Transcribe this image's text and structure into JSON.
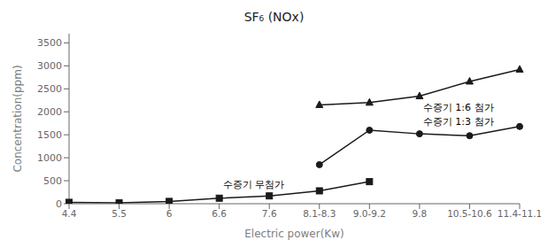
{
  "chart_data": {
    "type": "line",
    "title": "SF₆ (NOx)",
    "xlabel": "Electric power(Kw)",
    "ylabel": "Concentration(ppm)",
    "categories": [
      "4.4",
      "5.5",
      "6",
      "6.6",
      "7.6",
      "8.1-8.3",
      "9.0-9.2",
      "9.8",
      "10.5-10.6",
      "11.4-11.1"
    ],
    "series": [
      {
        "values": [
          30,
          20,
          50,
          120,
          170,
          280,
          480,
          null,
          null,
          null
        ],
        "color": "#1a1a1a",
        "marker": "square"
      },
      {
        "values": [
          null,
          null,
          null,
          null,
          null,
          850,
          1600,
          1520,
          1480,
          1680
        ],
        "color": "#1a1a1a",
        "marker": "circle"
      },
      {
        "values": [
          null,
          null,
          null,
          null,
          null,
          2150,
          2200,
          2340,
          2660,
          2920
        ],
        "color": "#1a1a1a",
        "marker": "triangle"
      }
    ],
    "annotations": [
      "수증기 무첨가",
      "수증기 1:3 첨가",
      "수증기 1:6 첨가"
    ],
    "ylim": [
      0,
      3700
    ],
    "yticks": [
      0,
      500,
      1000,
      1500,
      2000,
      2500,
      3000,
      3500
    ],
    "grid": false
  }
}
